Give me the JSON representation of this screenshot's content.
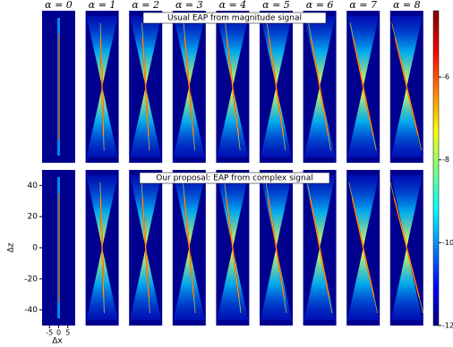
{
  "chart_data": {
    "type": "image-grid",
    "columns": [
      "α = 0",
      "α = 1",
      "α = 2",
      "α = 3",
      "α = 4",
      "α = 5",
      "α = 6",
      "α = 7",
      "α = 8"
    ],
    "rows": [
      "Usual EAP from magnitude signal",
      "Our proposal: EAP from complex signal"
    ],
    "ylabel": "Δz",
    "xlabel": "Δx",
    "ylim": [
      -50,
      50
    ],
    "yticks": [
      40,
      20,
      0,
      -20,
      -40
    ],
    "xlim": [
      -9,
      9
    ],
    "xticks": [
      -5,
      0,
      5
    ],
    "colorbar": {
      "lim": [
        -12,
        -4.4
      ],
      "ticks": [
        -6,
        -8,
        -10,
        -12
      ]
    }
  }
}
